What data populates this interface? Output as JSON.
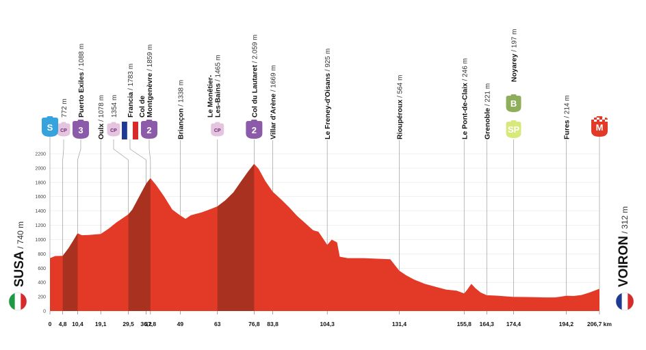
{
  "chart_data": {
    "type": "area",
    "xunit": "km",
    "ylim": [
      0,
      2200
    ],
    "xlim": [
      0,
      206.7
    ],
    "yticks": [
      "200",
      "400",
      "600",
      "800",
      "1000",
      "1200",
      "1400",
      "1600",
      "1800",
      "2000",
      "2200"
    ],
    "ytick_values": [
      200,
      400,
      600,
      800,
      1000,
      1200,
      1400,
      1600,
      1800,
      2000,
      2200
    ],
    "ticks": [
      {
        "v": 0,
        "label": "0"
      },
      {
        "v": 4.8,
        "label": "4,8"
      },
      {
        "v": 10.4,
        "label": "10,4"
      },
      {
        "v": 19.1,
        "label": "19,1"
      },
      {
        "v": 29.5,
        "label": "29,5"
      },
      {
        "v": 36.2,
        "label": "36,2"
      },
      {
        "v": 37.8,
        "label": "37,8"
      },
      {
        "v": 49,
        "label": "49"
      },
      {
        "v": 63,
        "label": "63"
      },
      {
        "v": 76.8,
        "label": "76,8"
      },
      {
        "v": 83.8,
        "label": "83,8"
      },
      {
        "v": 104.3,
        "label": "104,3"
      },
      {
        "v": 131.4,
        "label": "131,4"
      },
      {
        "v": 155.8,
        "label": "155,8"
      },
      {
        "v": 164.3,
        "label": "164,3"
      },
      {
        "v": 174.4,
        "label": "174,4"
      },
      {
        "v": 194.2,
        "label": "194,2"
      },
      {
        "v": 206.7,
        "label": "206,7 km"
      }
    ],
    "profile": [
      [
        0,
        740
      ],
      [
        2,
        770
      ],
      [
        4.8,
        772
      ],
      [
        7,
        880
      ],
      [
        9,
        1000
      ],
      [
        10.4,
        1088
      ],
      [
        12,
        1060
      ],
      [
        15,
        1065
      ],
      [
        19.1,
        1078
      ],
      [
        22,
        1150
      ],
      [
        25,
        1240
      ],
      [
        29.5,
        1354
      ],
      [
        31,
        1420
      ],
      [
        33,
        1560
      ],
      [
        35,
        1700
      ],
      [
        36.2,
        1783
      ],
      [
        37.8,
        1859
      ],
      [
        40,
        1760
      ],
      [
        43,
        1600
      ],
      [
        46,
        1420
      ],
      [
        49,
        1338
      ],
      [
        51,
        1290
      ],
      [
        53,
        1340
      ],
      [
        57,
        1380
      ],
      [
        60,
        1420
      ],
      [
        63,
        1465
      ],
      [
        66,
        1550
      ],
      [
        69,
        1660
      ],
      [
        72,
        1820
      ],
      [
        74.5,
        1950
      ],
      [
        76.8,
        2059
      ],
      [
        78.5,
        1990
      ],
      [
        81,
        1820
      ],
      [
        83.8,
        1669
      ],
      [
        87,
        1560
      ],
      [
        90,
        1450
      ],
      [
        93,
        1330
      ],
      [
        96,
        1230
      ],
      [
        99,
        1130
      ],
      [
        101,
        1110
      ],
      [
        103,
        1000
      ],
      [
        104.3,
        925
      ],
      [
        106,
        1000
      ],
      [
        108,
        960
      ],
      [
        109,
        760
      ],
      [
        112,
        740
      ],
      [
        118,
        740
      ],
      [
        124,
        730
      ],
      [
        128,
        725
      ],
      [
        131.4,
        564
      ],
      [
        134,
        500
      ],
      [
        137,
        440
      ],
      [
        141,
        380
      ],
      [
        145,
        340
      ],
      [
        149,
        300
      ],
      [
        153,
        285
      ],
      [
        155.8,
        246
      ],
      [
        157,
        300
      ],
      [
        158.5,
        380
      ],
      [
        160,
        320
      ],
      [
        162,
        260
      ],
      [
        164.3,
        221
      ],
      [
        168,
        215
      ],
      [
        174.4,
        197
      ],
      [
        180,
        195
      ],
      [
        186,
        190
      ],
      [
        190,
        190
      ],
      [
        192,
        200
      ],
      [
        194.2,
        214
      ],
      [
        197,
        210
      ],
      [
        200,
        225
      ],
      [
        203,
        260
      ],
      [
        206.7,
        312
      ]
    ],
    "shaded": [
      [
        4.8,
        10.4
      ],
      [
        29.5,
        37.8
      ],
      [
        63,
        76.8
      ]
    ],
    "waypoints": [
      {
        "km": 4.8,
        "name": "",
        "alt": "772 m",
        "badge": "CP"
      },
      {
        "km": 10.4,
        "name": "Puerto Exiles",
        "alt": "1088 m",
        "badge": "3"
      },
      {
        "km": 19.1,
        "name": "Oulx",
        "alt": "1078 m",
        "badge": ""
      },
      {
        "km": 29.5,
        "name": "",
        "alt": "1354 m",
        "badge": "CP"
      },
      {
        "km": 36.2,
        "name": "Francia",
        "alt": "1783 m",
        "badge": "FR"
      },
      {
        "km": 37.8,
        "name": "Col de",
        "name2": "Montgenèvre",
        "alt": "1859 m",
        "badge": "2"
      },
      {
        "km": 49,
        "name": "Briançon",
        "alt": "1338 m",
        "badge": ""
      },
      {
        "km": 63,
        "name": "Le Monêtier-",
        "name2": "Les-Bains",
        "alt": "1465 m",
        "badge": "CP"
      },
      {
        "km": 76.8,
        "name": "Col du Lautaret",
        "alt": "2.059 m",
        "badge": "2"
      },
      {
        "km": 83.8,
        "name": "Villar d'Arène",
        "alt": "1669 m",
        "badge": ""
      },
      {
        "km": 104.3,
        "name": "Le Freney-d'Oisans",
        "alt": "925 m",
        "badge": ""
      },
      {
        "km": 131.4,
        "name": "Rioupéroux",
        "alt": "564 m",
        "badge": ""
      },
      {
        "km": 155.8,
        "name": "Le Pont-de-Claix",
        "alt": "246 m",
        "badge": ""
      },
      {
        "km": 164.3,
        "name": "Grenoble",
        "alt": "221 m",
        "badge": ""
      },
      {
        "km": 174.4,
        "name": "Noyarey",
        "alt": "197 m",
        "badge": "B",
        "badge2": "SP"
      },
      {
        "km": 194.2,
        "name": "Fures",
        "alt": "214 m",
        "badge": ""
      }
    ],
    "start": {
      "name": "SUSA",
      "alt": "740 m",
      "badge": "S",
      "flag": "it"
    },
    "finish": {
      "name": "VOIRON",
      "alt": "312 m",
      "badge": "M",
      "flag": "fr"
    }
  },
  "colors": {
    "profile": "#e23a26",
    "shaded": "#a8311f",
    "climb": "#8b5aa8",
    "cp": "#e4c4df",
    "start": "#37a3dc",
    "finish": "#e23a26",
    "bonus": "#8fae5b",
    "sprint": "#d8e87a"
  }
}
